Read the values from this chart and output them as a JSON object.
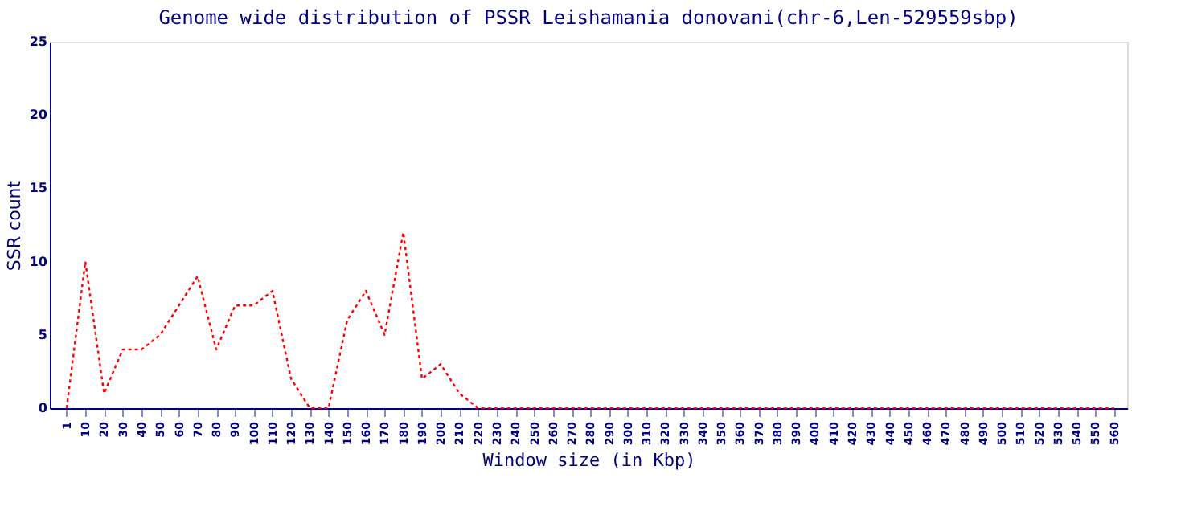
{
  "chart_data": {
    "type": "line",
    "title": "Genome wide distribution of PSSR Leishamania donovani(chr-6,Len-529559sbp)",
    "xlabel": "Window size (in Kbp)",
    "ylabel": "SSR count",
    "categories": [
      "1",
      "10",
      "20",
      "30",
      "40",
      "50",
      "60",
      "70",
      "80",
      "90",
      "100",
      "110",
      "120",
      "130",
      "140",
      "150",
      "160",
      "170",
      "180",
      "190",
      "200",
      "210",
      "220",
      "230",
      "240",
      "250",
      "260",
      "270",
      "280",
      "290",
      "300",
      "310",
      "320",
      "330",
      "340",
      "350",
      "360",
      "370",
      "380",
      "390",
      "400",
      "410",
      "420",
      "430",
      "440",
      "450",
      "460",
      "470",
      "480",
      "490",
      "500",
      "510",
      "520",
      "530",
      "540",
      "550",
      "560"
    ],
    "series": [
      {
        "color": "#ff0000",
        "values": [
          0,
          10,
          1,
          4,
          4,
          5,
          7,
          9,
          4,
          7,
          7,
          8,
          2,
          0,
          0,
          6,
          8,
          5,
          12,
          2,
          3,
          1,
          0,
          0,
          0,
          0,
          0,
          0,
          0,
          0,
          0,
          0,
          0,
          0,
          0,
          0,
          0,
          0,
          0,
          0,
          0,
          0,
          0,
          0,
          0,
          0,
          0,
          0,
          0,
          0,
          0,
          0,
          0,
          0,
          0,
          0,
          0
        ]
      }
    ],
    "ylim": [
      0,
      25
    ],
    "yticks": [
      0,
      5,
      10,
      15,
      20,
      25
    ],
    "grid": false,
    "legend": false,
    "marker": "none",
    "line_style": "dotted"
  }
}
